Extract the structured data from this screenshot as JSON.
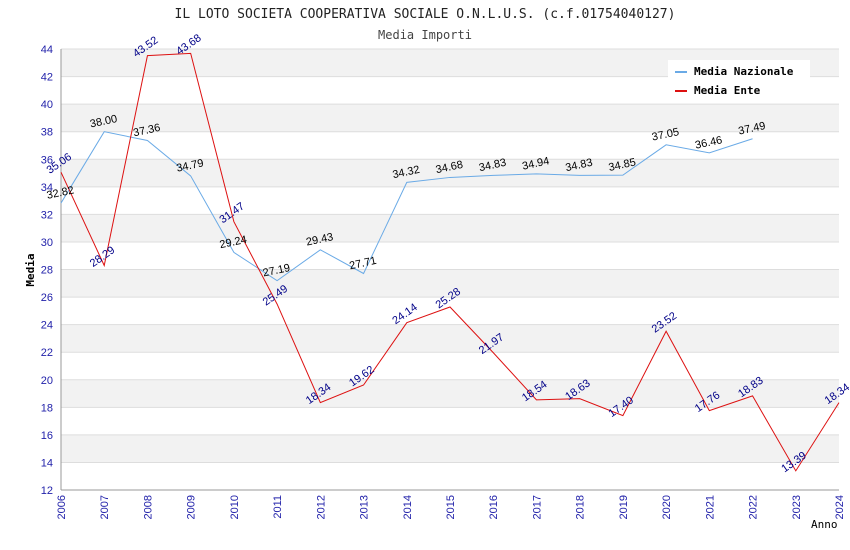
{
  "chart_data": {
    "type": "line",
    "title": "IL LOTO SOCIETA COOPERATIVA SOCIALE O.N.L.U.S. (c.f.01754040127)",
    "subtitle": "Media Importi",
    "xlabel": "Anno",
    "ylabel": "Media",
    "ylim": [
      12,
      44
    ],
    "yticks": [
      "12",
      "14",
      "16",
      "18",
      "20",
      "22",
      "24",
      "26",
      "28",
      "30",
      "32",
      "34",
      "36",
      "38",
      "40",
      "42",
      "44"
    ],
    "categories": [
      "2006",
      "2007",
      "2008",
      "2009",
      "2010",
      "2011",
      "2012",
      "2013",
      "2014",
      "2015",
      "2016",
      "2017",
      "2018",
      "2019",
      "2020",
      "2021",
      "2022",
      "2023",
      "2024"
    ],
    "legend_position": "top-right",
    "grid": true,
    "series": [
      {
        "name": "Media Nazionale",
        "color": "#6aaae6",
        "label_color": "#000000",
        "values": [
          32.82,
          38.0,
          37.36,
          34.79,
          29.24,
          27.19,
          29.43,
          27.71,
          34.32,
          34.68,
          34.83,
          34.94,
          34.83,
          34.85,
          37.05,
          36.46,
          37.49,
          null,
          null
        ],
        "labels": [
          "32.82",
          "38.00",
          "37.36",
          "34.79",
          "29.24",
          "27.19",
          "29.43",
          "27.71",
          "34.32",
          "34.68",
          "34.83",
          "34.94",
          "34.83",
          "34.85",
          "37.05",
          "36.46",
          "37.49",
          "",
          ""
        ]
      },
      {
        "name": "Media Ente",
        "color": "#dd1111",
        "label_color": "#000088",
        "values": [
          35.06,
          28.29,
          43.52,
          43.68,
          31.47,
          25.49,
          18.34,
          19.62,
          24.14,
          25.28,
          21.97,
          18.54,
          18.63,
          17.4,
          23.52,
          17.76,
          18.83,
          13.39,
          18.34
        ],
        "labels": [
          "35.06",
          "28.29",
          "43.52",
          "43.68",
          "31.47",
          "25.49",
          "18.34",
          "19.62",
          "24.14",
          "25.28",
          "21.97",
          "18.54",
          "18.63",
          "17.40",
          "23.52",
          "17.76",
          "18.83",
          "13.39",
          "18.34"
        ]
      }
    ]
  }
}
